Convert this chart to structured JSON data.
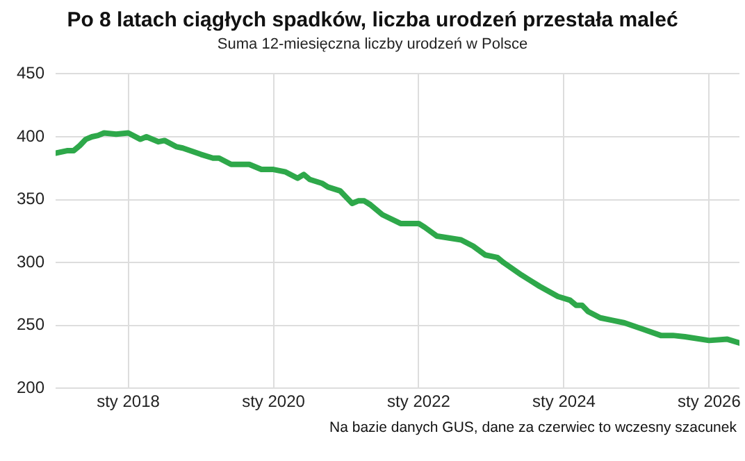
{
  "chart_data": {
    "type": "line",
    "title": "Po 8 latach ciągłych spadków, liczba urodzeń przestała maleć",
    "subtitle": "Suma 12-miesięczna liczby urodzeń w Polsce",
    "annotations": [
      "Na bazie danych GUS, dane za czerwiec to wczesny szacunek"
    ],
    "x": [
      "2017-01",
      "2017-03",
      "2017-04",
      "2017-05",
      "2017-06",
      "2017-07",
      "2017-08",
      "2017-09",
      "2017-11",
      "2018-01",
      "2018-03",
      "2018-04",
      "2018-06",
      "2018-07",
      "2018-09",
      "2018-10",
      "2019-01",
      "2019-03",
      "2019-04",
      "2019-06",
      "2019-08",
      "2019-09",
      "2019-11",
      "2020-01",
      "2020-03",
      "2020-05",
      "2020-06",
      "2020-07",
      "2020-09",
      "2020-10",
      "2020-12",
      "2021-02",
      "2021-03",
      "2021-04",
      "2021-05",
      "2021-07",
      "2021-10",
      "2022-01",
      "2022-02",
      "2022-04",
      "2022-08",
      "2022-10",
      "2022-12",
      "2023-02",
      "2023-03",
      "2023-06",
      "2023-09",
      "2023-12",
      "2024-02",
      "2024-03",
      "2024-04",
      "2024-05",
      "2024-07",
      "2024-09",
      "2024-11",
      "2025-02",
      "2025-05",
      "2025-07",
      "2025-09",
      "2026-01",
      "2026-04",
      "2026-06"
    ],
    "series": [
      {
        "color": "#2ea84a",
        "values": [
          387,
          389,
          389,
          393,
          398,
          400,
          401,
          403,
          402,
          403,
          398,
          400,
          396,
          397,
          392,
          391,
          386,
          383,
          383,
          378,
          378,
          378,
          374,
          374,
          372,
          367,
          370,
          366,
          363,
          360,
          357,
          347,
          349,
          349,
          346,
          338,
          331,
          331,
          328,
          321,
          318,
          313,
          306,
          304,
          300,
          290,
          281,
          273,
          270,
          266,
          266,
          261,
          256,
          254,
          252,
          247,
          242,
          242,
          241,
          238,
          239,
          236
        ]
      }
    ],
    "xlim": [
      "2017-01",
      "2026-06"
    ],
    "xticks": [
      {
        "value": "2018-01",
        "label": "sty 2018"
      },
      {
        "value": "2020-01",
        "label": "sty 2020"
      },
      {
        "value": "2022-01",
        "label": "sty 2022"
      },
      {
        "value": "2024-01",
        "label": "sty 2024"
      },
      {
        "value": "2026-01",
        "label": "sty 2026"
      }
    ],
    "ylim": [
      200,
      450
    ],
    "yticks": [
      200,
      250,
      300,
      350,
      400,
      450
    ],
    "grid": true,
    "legend": false,
    "marker": "none",
    "line_style": "solid"
  }
}
